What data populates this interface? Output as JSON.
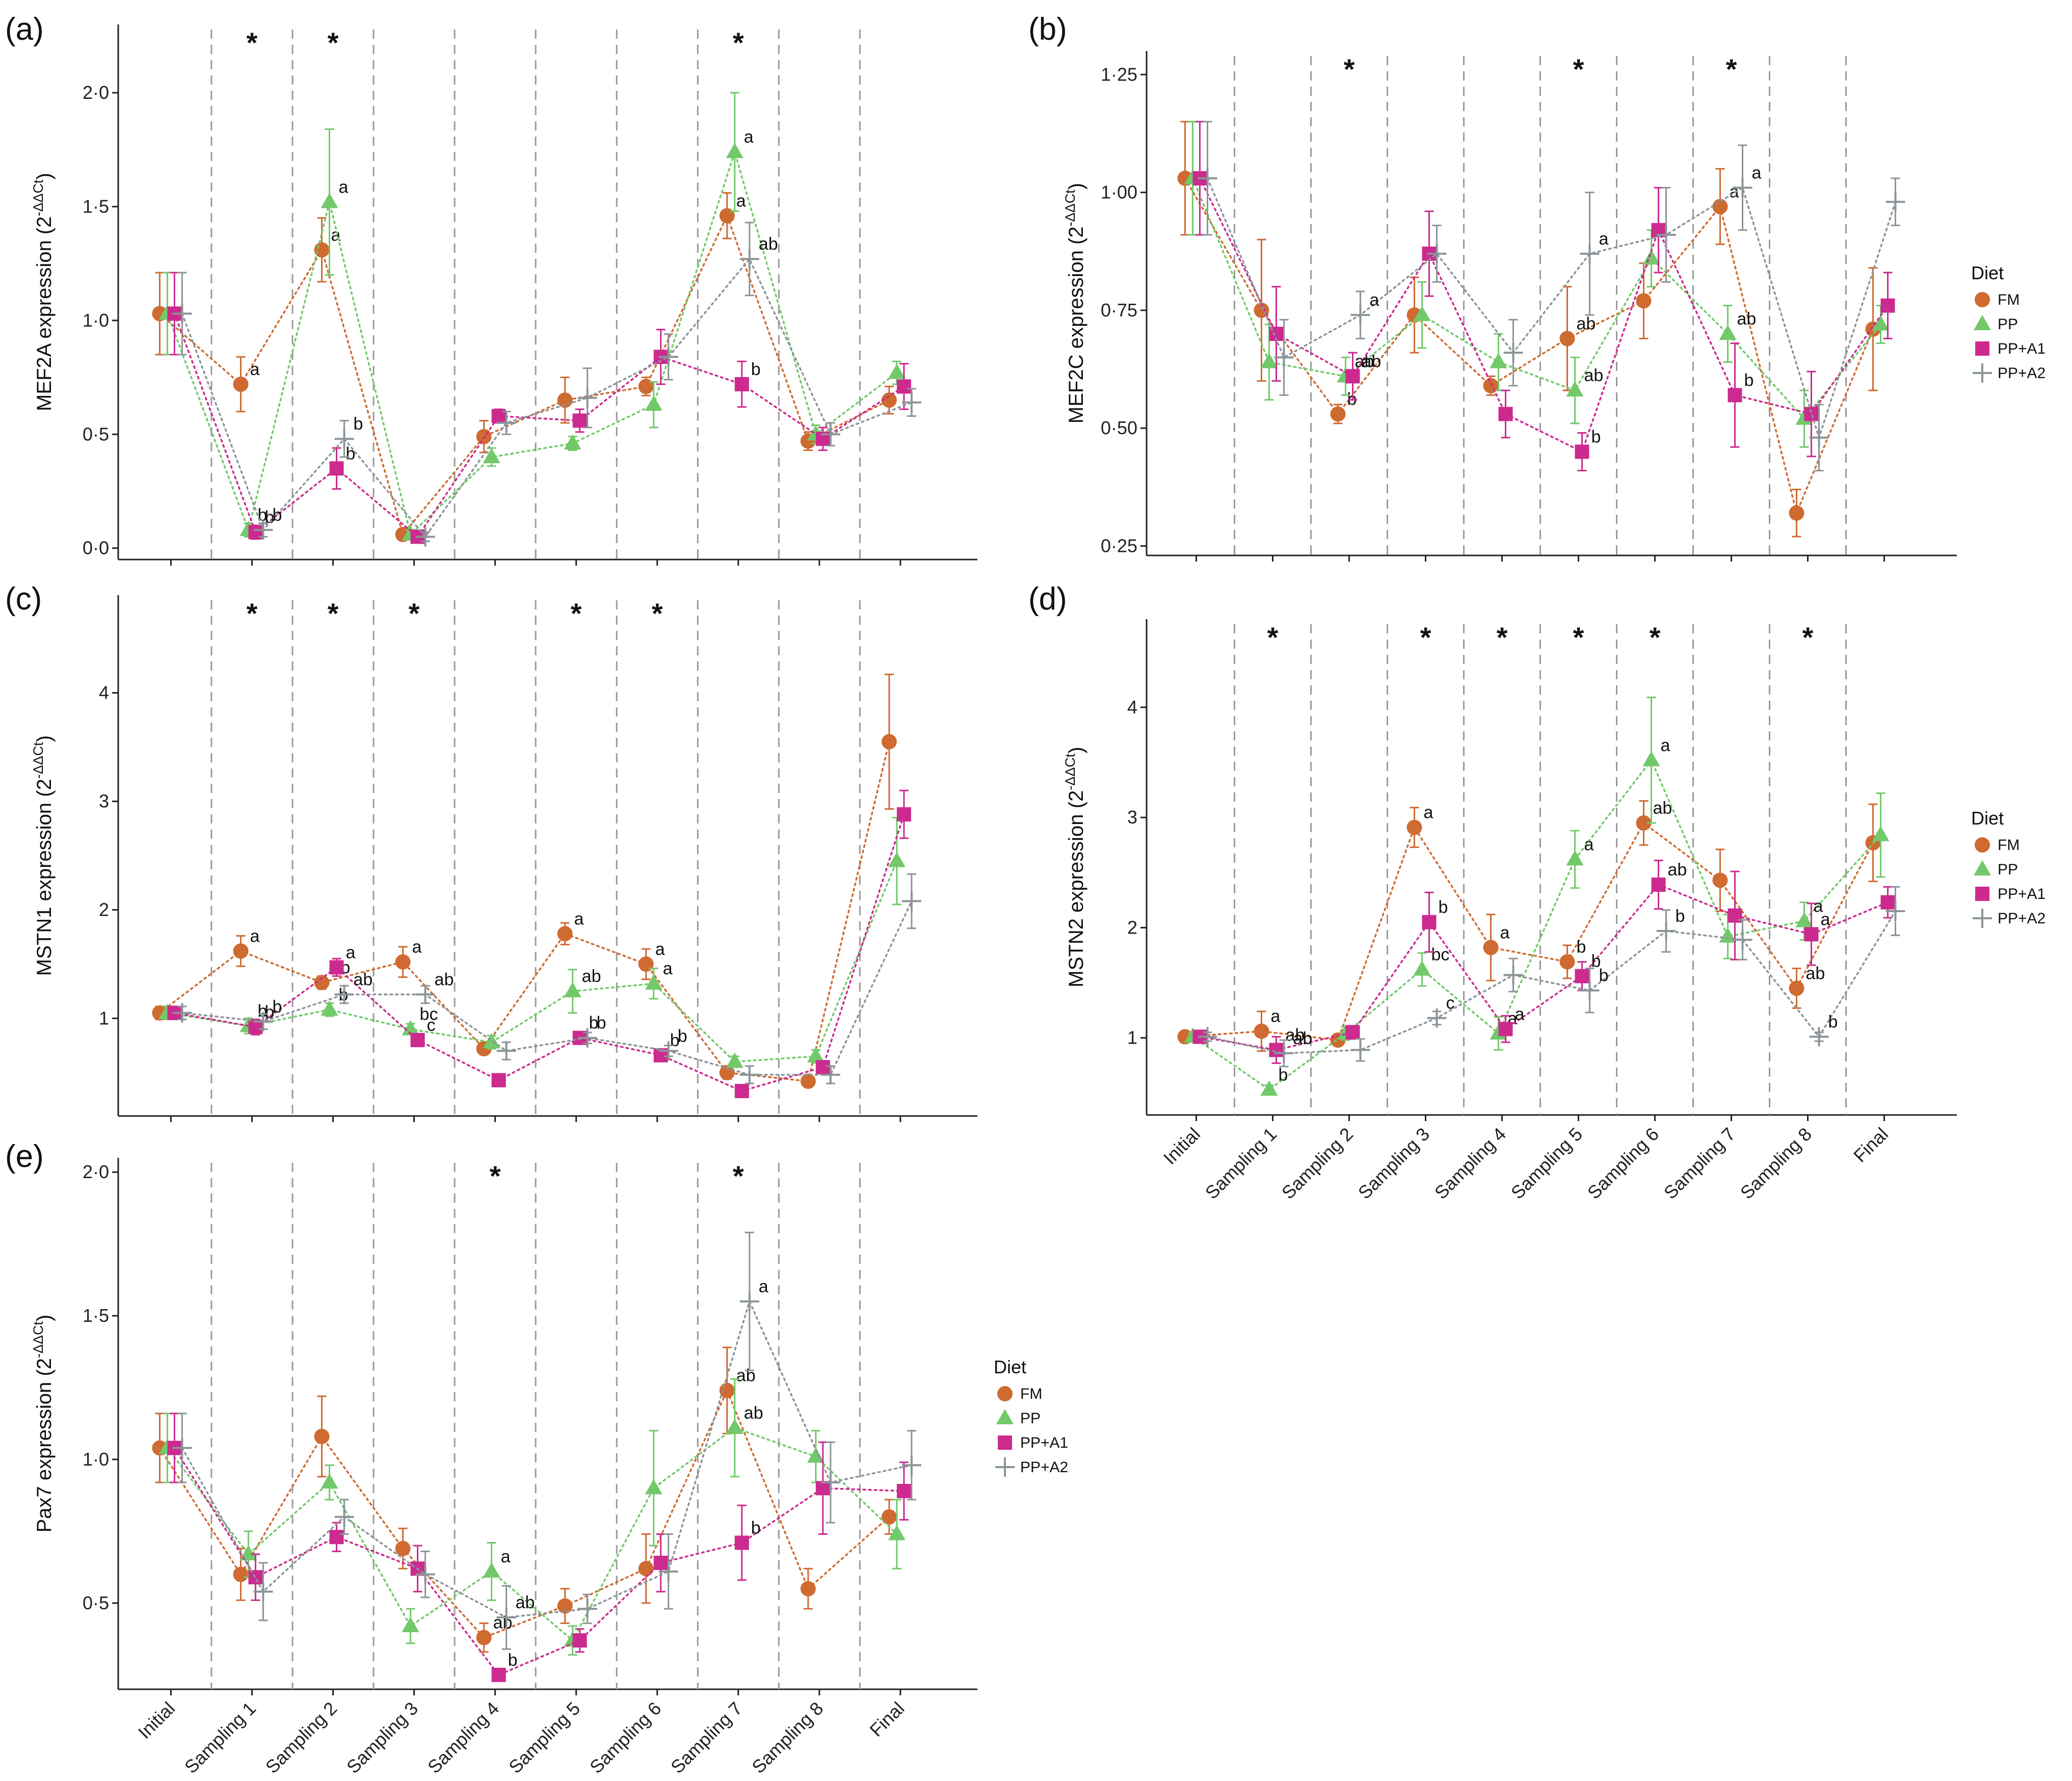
{
  "legend": {
    "title": "Diet",
    "entries": [
      "FM",
      "PP",
      "PP+A1",
      "PP+A2"
    ]
  },
  "colors": {
    "FM": "#cf6a30",
    "PP": "#72c96a",
    "PP+A1": "#cc2a8e",
    "PP+A2": "#8b9498"
  },
  "markers": {
    "FM": "circle",
    "PP": "triangle",
    "PP+A1": "square",
    "PP+A2": "plus"
  },
  "chart_data": [
    {
      "panel": "(a)",
      "type": "line",
      "ylabel": "MEF2A expression (2",
      "ylabel_sup": "-ΔΔCt",
      "ylabel_close": ")",
      "ylim": [
        -0.05,
        2.3
      ],
      "yticks": [
        0,
        0.5,
        1,
        1.5,
        2
      ],
      "ytick_labels": [
        "0·0",
        "0·5",
        "1·0",
        "1·5",
        "2·0"
      ],
      "categories": [
        "Initial",
        "Sampling 1",
        "Sampling 2",
        "Sampling 3",
        "Sampling 4",
        "Sampling 5",
        "Sampling 6",
        "Sampling 7",
        "Sampling 8",
        "Final"
      ],
      "show_x_labels": false,
      "show_legend": false,
      "stars": [
        "Sampling 1",
        "Sampling 2",
        "Sampling 7"
      ],
      "series": [
        {
          "name": "FM",
          "values": [
            1.03,
            0.72,
            1.31,
            0.06,
            0.49,
            0.65,
            0.71,
            1.46,
            0.47,
            0.65
          ],
          "err": [
            0.18,
            0.12,
            0.14,
            0.02,
            0.07,
            0.1,
            0.04,
            0.1,
            0.04,
            0.06
          ],
          "letters": [
            "",
            "a",
            "a",
            "",
            "",
            "",
            "",
            "a",
            "",
            ""
          ]
        },
        {
          "name": "PP",
          "values": [
            1.03,
            0.08,
            1.52,
            0.06,
            0.4,
            0.46,
            0.63,
            1.74,
            0.5,
            0.77
          ],
          "err": [
            0.18,
            0.03,
            0.32,
            0.02,
            0.04,
            0.03,
            0.1,
            0.26,
            0.04,
            0.05
          ],
          "letters": [
            "",
            "b",
            "a",
            "",
            "",
            "",
            "",
            "a",
            "",
            ""
          ]
        },
        {
          "name": "PP+A1",
          "values": [
            1.03,
            0.07,
            0.35,
            0.05,
            0.58,
            0.56,
            0.84,
            0.72,
            0.48,
            0.71
          ],
          "err": [
            0.18,
            0.03,
            0.09,
            0.02,
            0.03,
            0.05,
            0.12,
            0.1,
            0.05,
            0.1
          ],
          "letters": [
            "",
            "b",
            "b",
            "",
            "",
            "",
            "",
            "b",
            "",
            ""
          ]
        },
        {
          "name": "PP+A2",
          "values": [
            1.03,
            0.08,
            0.48,
            0.05,
            0.55,
            0.66,
            0.84,
            1.27,
            0.5,
            0.64
          ],
          "err": [
            0.18,
            0.03,
            0.08,
            0.02,
            0.05,
            0.13,
            0.1,
            0.16,
            0.05,
            0.06
          ],
          "letters": [
            "",
            "b",
            "b",
            "",
            "",
            "",
            "",
            "ab",
            "",
            ""
          ]
        }
      ]
    },
    {
      "panel": "(b)",
      "type": "line",
      "ylabel": "MEF2C expression (2",
      "ylabel_sup": "-ΔΔCt",
      "ylabel_close": ")",
      "ylim": [
        0.23,
        1.3
      ],
      "yticks": [
        0.25,
        0.5,
        0.75,
        1.0,
        1.25
      ],
      "ytick_labels": [
        "0·25",
        "0·50",
        "0·75",
        "1·00",
        "1·25"
      ],
      "categories": [
        "Initial",
        "Sampling 1",
        "Sampling 2",
        "Sampling 3",
        "Sampling 4",
        "Sampling 5",
        "Sampling 6",
        "Sampling 7",
        "Sampling 8",
        "Final"
      ],
      "show_x_labels": false,
      "show_legend": true,
      "stars": [
        "Sampling 2",
        "Sampling 5",
        "Sampling 7"
      ],
      "series": [
        {
          "name": "FM",
          "values": [
            1.03,
            0.75,
            0.53,
            0.74,
            0.59,
            0.69,
            0.77,
            0.97,
            0.32,
            0.71
          ],
          "err": [
            0.12,
            0.15,
            0.02,
            0.08,
            0.02,
            0.11,
            0.08,
            0.08,
            0.05,
            0.13
          ],
          "letters": [
            "",
            "",
            "b",
            "",
            "",
            "ab",
            "",
            "a",
            "",
            ""
          ]
        },
        {
          "name": "PP",
          "values": [
            1.03,
            0.64,
            0.61,
            0.74,
            0.64,
            0.58,
            0.86,
            0.7,
            0.52,
            0.72
          ],
          "err": [
            0.12,
            0.08,
            0.04,
            0.07,
            0.06,
            0.07,
            0.06,
            0.06,
            0.06,
            0.04
          ],
          "letters": [
            "",
            "",
            "ab",
            "",
            "",
            "ab",
            "",
            "ab",
            "",
            ""
          ]
        },
        {
          "name": "PP+A1",
          "values": [
            1.03,
            0.7,
            0.61,
            0.87,
            0.53,
            0.45,
            0.92,
            0.57,
            0.53,
            0.76
          ],
          "err": [
            0.12,
            0.1,
            0.05,
            0.09,
            0.05,
            0.04,
            0.09,
            0.11,
            0.09,
            0.07
          ],
          "letters": [
            "",
            "",
            "ab",
            "",
            "",
            "b",
            "",
            "b",
            "",
            ""
          ]
        },
        {
          "name": "PP+A2",
          "values": [
            1.03,
            0.65,
            0.74,
            0.87,
            0.66,
            0.87,
            0.91,
            1.01,
            0.48,
            0.98
          ],
          "err": [
            0.12,
            0.08,
            0.05,
            0.06,
            0.07,
            0.13,
            0.1,
            0.09,
            0.07,
            0.05
          ],
          "letters": [
            "",
            "",
            "a",
            "",
            "",
            "a",
            "",
            "a",
            "",
            ""
          ]
        }
      ]
    },
    {
      "panel": "(c)",
      "type": "line",
      "ylabel": "MSTN1 expression (2",
      "ylabel_sup": "-ΔΔCt",
      "ylabel_close": ")",
      "ylim": [
        0.1,
        4.9
      ],
      "yticks": [
        1,
        2,
        3,
        4
      ],
      "ytick_labels": [
        "1",
        "2",
        "3",
        "4"
      ],
      "categories": [
        "Initial",
        "Sampling 1",
        "Sampling 2",
        "Sampling 3",
        "Sampling 4",
        "Sampling 5",
        "Sampling 6",
        "Sampling 7",
        "Sampling 8",
        "Final"
      ],
      "show_x_labels": false,
      "show_legend": false,
      "stars": [
        "Sampling 1",
        "Sampling 2",
        "Sampling 3",
        "Sampling 5",
        "Sampling 6"
      ],
      "series": [
        {
          "name": "FM",
          "values": [
            1.05,
            1.62,
            1.33,
            1.52,
            0.72,
            1.78,
            1.5,
            0.5,
            0.42,
            3.55
          ],
          "err": [
            0.06,
            0.14,
            0.06,
            0.14,
            0.05,
            0.1,
            0.14,
            0.06,
            0.04,
            0.62
          ],
          "letters": [
            "",
            "a",
            "ab",
            "a",
            "",
            "a",
            "a",
            "",
            "",
            ""
          ]
        },
        {
          "name": "PP",
          "values": [
            1.05,
            0.93,
            1.08,
            0.9,
            0.78,
            1.25,
            1.32,
            0.6,
            0.65,
            2.45
          ],
          "err": [
            0.06,
            0.07,
            0.06,
            0.05,
            0.06,
            0.2,
            0.14,
            0.05,
            0.06,
            0.4
          ],
          "letters": [
            "",
            "b",
            "b",
            "bc",
            "",
            "ab",
            "a",
            "",
            "",
            ""
          ]
        },
        {
          "name": "PP+A1",
          "values": [
            1.05,
            0.92,
            1.47,
            0.8,
            0.43,
            0.82,
            0.66,
            0.33,
            0.55,
            2.88
          ],
          "err": [
            0.06,
            0.07,
            0.08,
            0.05,
            0.05,
            0.05,
            0.05,
            0.04,
            0.04,
            0.22
          ],
          "letters": [
            "",
            "b",
            "a",
            "c",
            "",
            "b",
            "b",
            "",
            "",
            ""
          ]
        },
        {
          "name": "PP+A2",
          "values": [
            1.05,
            0.97,
            1.22,
            1.22,
            0.7,
            0.82,
            0.7,
            0.48,
            0.48,
            2.08
          ],
          "err": [
            0.06,
            0.07,
            0.08,
            0.08,
            0.08,
            0.05,
            0.05,
            0.08,
            0.08,
            0.25
          ],
          "letters": [
            "",
            "b",
            "ab",
            "ab",
            "",
            "b",
            "b",
            "",
            "",
            ""
          ]
        }
      ]
    },
    {
      "panel": "(d)",
      "type": "line",
      "ylabel": "MSTN2 expression (2",
      "ylabel_sup": "-ΔΔCt",
      "ylabel_close": ")",
      "ylim": [
        0.3,
        4.8
      ],
      "yticks": [
        1,
        2,
        3,
        4
      ],
      "ytick_labels": [
        "1",
        "2",
        "3",
        "4"
      ],
      "categories": [
        "Initial",
        "Sampling 1",
        "Sampling 2",
        "Sampling 3",
        "Sampling 4",
        "Sampling 5",
        "Sampling 6",
        "Sampling 7",
        "Sampling 8",
        "Final"
      ],
      "show_x_labels": true,
      "show_legend": true,
      "stars": [
        "Sampling 1",
        "Sampling 3",
        "Sampling 4",
        "Sampling 5",
        "Sampling 6",
        "Sampling 8"
      ],
      "series": [
        {
          "name": "FM",
          "values": [
            1.01,
            1.06,
            0.98,
            2.91,
            1.82,
            1.69,
            2.95,
            2.43,
            1.45,
            2.77
          ],
          "err": [
            0.04,
            0.18,
            0.04,
            0.18,
            0.3,
            0.15,
            0.2,
            0.28,
            0.18,
            0.35
          ],
          "letters": [
            "",
            "a",
            "",
            "a",
            "a",
            "b",
            "ab",
            "",
            "ab",
            ""
          ]
        },
        {
          "name": "PP",
          "values": [
            1.01,
            0.53,
            1.04,
            1.62,
            1.04,
            2.62,
            3.52,
            1.92,
            2.06,
            2.84
          ],
          "err": [
            0.04,
            0.04,
            0.06,
            0.15,
            0.15,
            0.26,
            0.57,
            0.2,
            0.17,
            0.38
          ],
          "letters": [
            "",
            "b",
            "",
            "bc",
            "a",
            "a",
            "a",
            "",
            "a",
            ""
          ]
        },
        {
          "name": "PP+A1",
          "values": [
            1.01,
            0.89,
            1.05,
            2.05,
            1.08,
            1.56,
            2.39,
            2.11,
            1.94,
            2.23
          ],
          "err": [
            0.04,
            0.12,
            0.06,
            0.27,
            0.12,
            0.13,
            0.22,
            0.4,
            0.28,
            0.14
          ],
          "letters": [
            "",
            "ab",
            "",
            "b",
            "a",
            "b",
            "ab",
            "",
            "a",
            ""
          ]
        },
        {
          "name": "PP+A2",
          "values": [
            1.01,
            0.86,
            0.89,
            1.18,
            1.57,
            1.43,
            1.97,
            1.89,
            1.01,
            2.15
          ],
          "err": [
            0.04,
            0.12,
            0.1,
            0.06,
            0.15,
            0.2,
            0.19,
            0.18,
            0.04,
            0.22
          ],
          "letters": [
            "",
            "ab",
            "",
            "c",
            "",
            "b",
            "b",
            "",
            "b",
            ""
          ]
        }
      ]
    },
    {
      "panel": "(e)",
      "type": "line",
      "ylabel": "Pax7 expression (2",
      "ylabel_sup": "-ΔΔCt",
      "ylabel_close": ")",
      "ylim": [
        0.2,
        2.05
      ],
      "yticks": [
        0.5,
        1.0,
        1.5,
        2.0
      ],
      "ytick_labels": [
        "0·5",
        "1·0",
        "1·5",
        "2·0"
      ],
      "categories": [
        "Initial",
        "Sampling 1",
        "Sampling 2",
        "Sampling 3",
        "Sampling 4",
        "Sampling 5",
        "Sampling 6",
        "Sampling 7",
        "Sampling 8",
        "Final"
      ],
      "show_x_labels": true,
      "show_legend": true,
      "stars": [
        "Sampling 4",
        "Sampling 7"
      ],
      "series": [
        {
          "name": "FM",
          "values": [
            1.04,
            0.6,
            1.08,
            0.69,
            0.38,
            0.49,
            0.62,
            1.24,
            0.55,
            0.8
          ],
          "err": [
            0.12,
            0.09,
            0.14,
            0.07,
            0.05,
            0.06,
            0.12,
            0.15,
            0.07,
            0.06
          ],
          "letters": [
            "",
            "",
            "",
            "",
            "ab",
            "",
            "",
            "ab",
            "",
            ""
          ]
        },
        {
          "name": "PP",
          "values": [
            1.04,
            0.67,
            0.92,
            0.42,
            0.61,
            0.37,
            0.9,
            1.11,
            1.01,
            0.74
          ],
          "err": [
            0.12,
            0.08,
            0.06,
            0.06,
            0.1,
            0.05,
            0.2,
            0.17,
            0.09,
            0.12
          ],
          "letters": [
            "",
            "",
            "",
            "",
            "a",
            "",
            "",
            "ab",
            "",
            ""
          ]
        },
        {
          "name": "PP+A1",
          "values": [
            1.04,
            0.59,
            0.73,
            0.62,
            0.25,
            0.37,
            0.64,
            0.71,
            0.9,
            0.89
          ],
          "err": [
            0.12,
            0.08,
            0.05,
            0.08,
            0.02,
            0.04,
            0.1,
            0.13,
            0.16,
            0.1
          ],
          "letters": [
            "",
            "",
            "",
            "",
            "b",
            "",
            "",
            "b",
            "",
            ""
          ]
        },
        {
          "name": "PP+A2",
          "values": [
            1.04,
            0.54,
            0.8,
            0.6,
            0.45,
            0.48,
            0.61,
            1.55,
            0.92,
            0.98
          ],
          "err": [
            0.12,
            0.1,
            0.06,
            0.08,
            0.11,
            0.05,
            0.13,
            0.24,
            0.14,
            0.12
          ],
          "letters": [
            "",
            "",
            "",
            "",
            "ab",
            "",
            "",
            "a",
            "",
            ""
          ]
        }
      ]
    }
  ]
}
